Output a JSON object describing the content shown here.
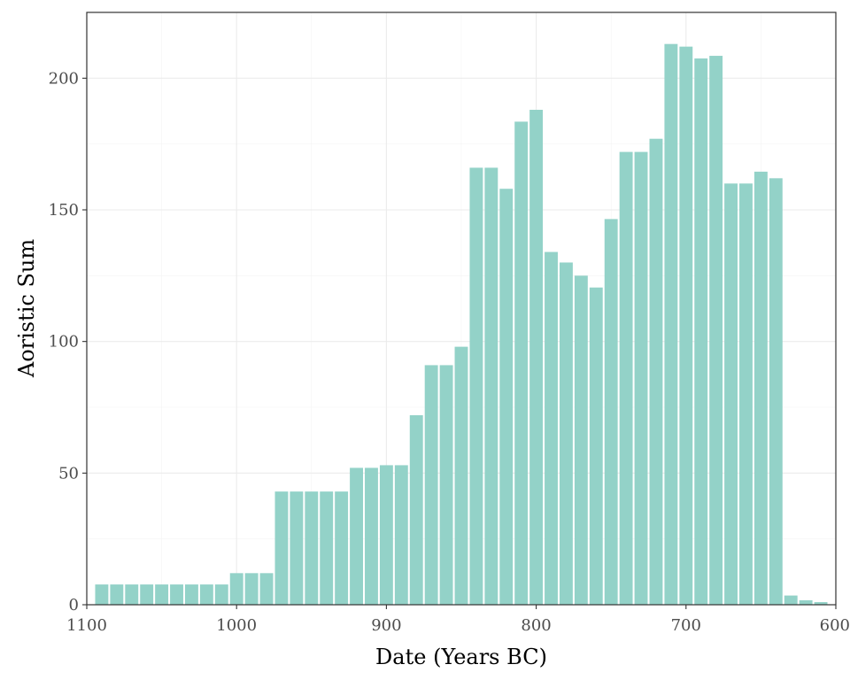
{
  "chart_data": {
    "type": "bar",
    "xlabel": "Date (Years BC)",
    "ylabel": "Aoristic Sum",
    "x_reversed": true,
    "xlim": [
      1100,
      600
    ],
    "ylim": [
      0,
      225
    ],
    "x_ticks": [
      1100,
      1000,
      900,
      800,
      700,
      600
    ],
    "y_ticks": [
      0,
      50,
      100,
      150,
      200
    ],
    "grid": true,
    "bar_color": "#93d2c8",
    "bin_width_years": 10,
    "x": [
      1090,
      1080,
      1070,
      1060,
      1050,
      1040,
      1030,
      1020,
      1010,
      1000,
      990,
      980,
      970,
      960,
      950,
      940,
      930,
      920,
      910,
      900,
      890,
      880,
      870,
      860,
      850,
      840,
      830,
      820,
      810,
      800,
      790,
      780,
      770,
      760,
      750,
      740,
      730,
      720,
      710,
      700,
      690,
      680,
      670,
      660,
      650,
      640,
      630,
      620,
      610
    ],
    "values": [
      7.7,
      7.7,
      7.7,
      7.7,
      7.7,
      7.7,
      7.7,
      7.7,
      7.7,
      12.0,
      12.0,
      12.0,
      43.0,
      43.0,
      43.0,
      43.0,
      43.0,
      52.0,
      52.0,
      53.0,
      53.0,
      72.0,
      91.0,
      91.0,
      98.0,
      166.0,
      166.0,
      158.0,
      183.5,
      188.0,
      134.0,
      130.0,
      125.0,
      120.5,
      146.5,
      172.0,
      172.0,
      177.0,
      213.0,
      212.0,
      207.5,
      208.5,
      160.0,
      160.0,
      164.5,
      162.0,
      3.5,
      1.7,
      1.0
    ]
  }
}
